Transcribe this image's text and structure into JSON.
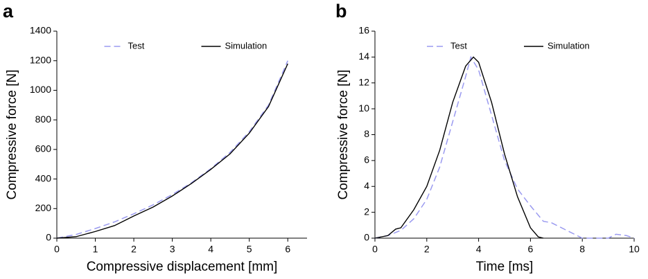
{
  "chart_data": [
    {
      "type": "line",
      "panel_label": "a",
      "xlabel": "Compressive displacement [mm]",
      "ylabel": "Compressive force [N]",
      "xlim": [
        0,
        6.5
      ],
      "ylim": [
        0,
        1400
      ],
      "xticks": [
        0,
        1,
        2,
        3,
        4,
        5,
        6
      ],
      "yticks": [
        0,
        200,
        400,
        600,
        800,
        1000,
        1200,
        1400
      ],
      "legend": "top",
      "series": [
        {
          "name": "Test",
          "color": "#9a9af0",
          "style": "dashed",
          "x": [
            0,
            0.5,
            1,
            1.5,
            2,
            2.5,
            3,
            3.5,
            4,
            4.5,
            5,
            5.5,
            6
          ],
          "values": [
            0,
            25,
            65,
            110,
            165,
            225,
            295,
            375,
            470,
            580,
            720,
            900,
            1200
          ]
        },
        {
          "name": "Simulation",
          "color": "#000000",
          "style": "solid",
          "x": [
            0,
            0.5,
            1,
            1.5,
            2,
            2.5,
            3,
            3.5,
            4,
            4.5,
            5,
            5.5,
            6
          ],
          "values": [
            0,
            10,
            45,
            85,
            150,
            210,
            285,
            370,
            465,
            570,
            710,
            890,
            1180
          ]
        }
      ]
    },
    {
      "type": "line",
      "panel_label": "b",
      "xlabel": "Time [ms]",
      "ylabel": "Compressive force [N]",
      "xlim": [
        0,
        10
      ],
      "ylim": [
        0,
        16
      ],
      "xticks": [
        0,
        2,
        4,
        6,
        8,
        10
      ],
      "yticks": [
        0,
        2,
        4,
        6,
        8,
        10,
        12,
        14,
        16
      ],
      "legend": "top",
      "series": [
        {
          "name": "Test",
          "color": "#9a9af0",
          "style": "dashed",
          "x": [
            0,
            0.5,
            1,
            1.5,
            2,
            2.5,
            3,
            3.5,
            3.7,
            4,
            4.5,
            5,
            5.5,
            6,
            6.5,
            6.8,
            7,
            7.5,
            8,
            9,
            9.3,
            9.7,
            10
          ],
          "values": [
            0,
            0.2,
            0.6,
            1.5,
            3,
            5.5,
            9,
            12.5,
            14,
            13,
            9.5,
            6,
            3.8,
            2.5,
            1.3,
            1.2,
            1,
            0.5,
            0,
            0,
            0.3,
            0.2,
            0
          ]
        },
        {
          "name": "Simulation",
          "color": "#000000",
          "style": "solid",
          "x": [
            0,
            0.5,
            0.8,
            1,
            1.5,
            2,
            2.5,
            3,
            3.5,
            3.8,
            4,
            4.5,
            5,
            5.5,
            6,
            6.3,
            6.5
          ],
          "values": [
            0,
            0.2,
            0.7,
            0.8,
            2.2,
            4,
            6.8,
            10.5,
            13.3,
            14,
            13.6,
            10.5,
            6.5,
            3.2,
            0.8,
            0.1,
            0
          ]
        }
      ]
    }
  ]
}
